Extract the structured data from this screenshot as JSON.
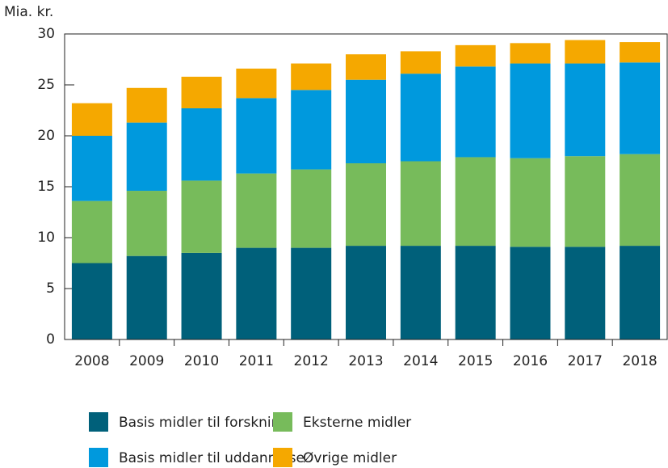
{
  "chart_data": {
    "type": "stacked_bar",
    "y_label": "Mia. kr.",
    "categories": [
      "2008",
      "2009",
      "2010",
      "2011",
      "2012",
      "2013",
      "2014",
      "2015",
      "2016",
      "2017",
      "2018"
    ],
    "series": [
      {
        "name": "Basis midler til forskning",
        "color": "#00607a",
        "values": [
          7.5,
          8.2,
          8.5,
          9.0,
          9.0,
          9.2,
          9.2,
          9.2,
          9.1,
          9.1,
          9.2
        ]
      },
      {
        "name": "Eksterne midler",
        "color": "#77bb5b",
        "values": [
          6.1,
          6.4,
          7.1,
          7.3,
          7.7,
          8.1,
          8.3,
          8.7,
          8.7,
          8.9,
          9.0
        ]
      },
      {
        "name": "Basis midler til uddannelse",
        "color": "#0099dd",
        "values": [
          6.4,
          6.7,
          7.1,
          7.4,
          7.8,
          8.2,
          8.6,
          8.9,
          9.3,
          9.1,
          9.0
        ]
      },
      {
        "name": "Øvrige midler",
        "color": "#f5a800",
        "values": [
          3.2,
          3.4,
          3.1,
          2.9,
          2.6,
          2.5,
          2.2,
          2.1,
          2.0,
          2.3,
          2.0
        ]
      }
    ],
    "ylim": [
      0,
      30
    ],
    "yticks": [
      0,
      5,
      10,
      15,
      20,
      25,
      30
    ],
    "legend": "bottom"
  }
}
